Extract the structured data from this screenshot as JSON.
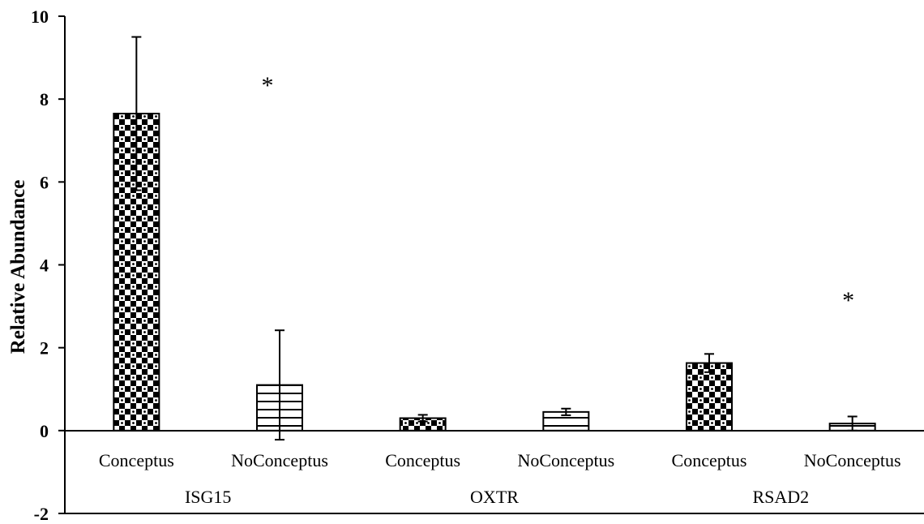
{
  "chart_data": {
    "type": "bar",
    "ylabel": "Relative Abundance",
    "ylim": [
      -2,
      10
    ],
    "yticks": [
      "-2",
      "0",
      "2",
      "4",
      "6",
      "8",
      "10"
    ],
    "grid": false,
    "legend": "none",
    "groups": [
      {
        "name": "ISG15",
        "bars": [
          {
            "label": "Conceptus",
            "value": 7.65,
            "error": 1.85,
            "pattern": "checker",
            "significant": true
          },
          {
            "label": "NoConceptus",
            "value": 1.1,
            "error": 1.32,
            "pattern": "hlines",
            "significant": false
          }
        ]
      },
      {
        "name": "OXTR",
        "bars": [
          {
            "label": "Conceptus",
            "value": 0.3,
            "error": 0.08,
            "pattern": "checker",
            "significant": false
          },
          {
            "label": "NoConceptus",
            "value": 0.45,
            "error": 0.08,
            "pattern": "hlines",
            "significant": false
          }
        ]
      },
      {
        "name": "RSAD2",
        "bars": [
          {
            "label": "Conceptus",
            "value": 1.63,
            "error": 0.22,
            "pattern": "checker",
            "significant": true
          },
          {
            "label": "NoConceptus",
            "value": 0.17,
            "error": 0.17,
            "pattern": "hlines",
            "significant": false
          }
        ]
      }
    ],
    "annotations": [
      "*",
      "*"
    ],
    "colors": {
      "bar_fill": "#000000",
      "pattern_bg": "#ffffff",
      "axis": "#000000"
    }
  }
}
